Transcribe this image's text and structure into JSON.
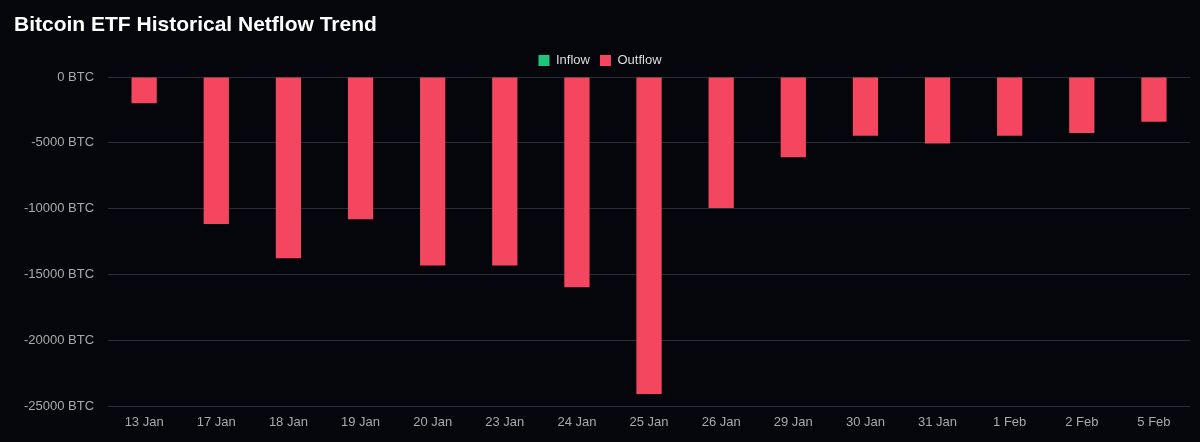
{
  "chart_data": {
    "type": "bar",
    "title": "Bitcoin ETF Historical Netflow Trend",
    "categories": [
      "13 Jan",
      "17 Jan",
      "18 Jan",
      "19 Jan",
      "20 Jan",
      "23 Jan",
      "24 Jan",
      "25 Jan",
      "26 Jan",
      "29 Jan",
      "30 Jan",
      "31 Jan",
      "1 Feb",
      "2 Feb",
      "5 Feb"
    ],
    "series": [
      {
        "name": "Inflow",
        "color": "#1fc77e",
        "values": [
          null,
          null,
          null,
          null,
          null,
          null,
          null,
          null,
          null,
          null,
          null,
          null,
          null,
          null,
          null
        ]
      },
      {
        "name": "Outflow",
        "color": "#f4475f",
        "values": [
          -2000,
          -11150,
          -13750,
          -10800,
          -14300,
          -14300,
          -15950,
          -24050,
          -9950,
          -6100,
          -4450,
          -5050,
          -4450,
          -4250,
          -3400
        ]
      }
    ],
    "ylim": [
      -25000,
      0
    ],
    "yticks": [
      {
        "value": -25000,
        "label": "-25000 BTC"
      },
      {
        "value": -20000,
        "label": "-20000 BTC"
      },
      {
        "value": -15000,
        "label": "-15000 BTC"
      },
      {
        "value": -10000,
        "label": "-10000 BTC"
      },
      {
        "value": -5000,
        "label": "-5000 BTC"
      },
      {
        "value": 0,
        "label": "0 BTC"
      }
    ],
    "grid": "y",
    "legend": "top"
  }
}
